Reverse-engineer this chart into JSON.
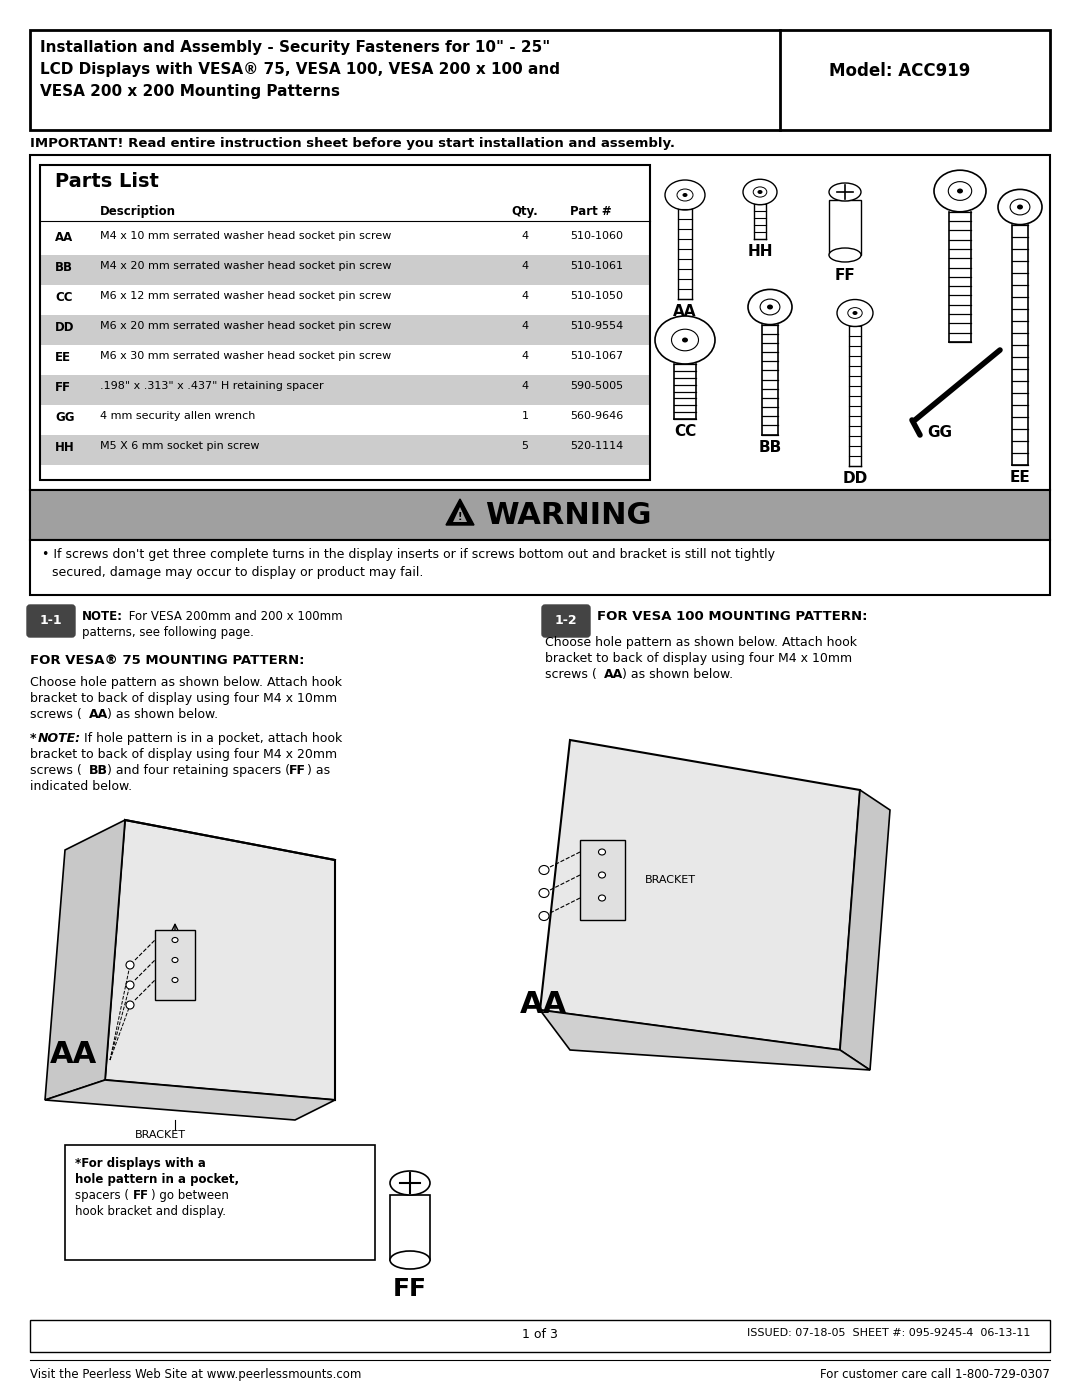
{
  "title_line1": "Installation and Assembly - Security Fasteners for 10\" - 25\"",
  "title_line2": "LCD Displays with VESA® 75, VESA 100, VESA 200 x 100 and",
  "title_line3": "VESA 200 x 200 Mounting Patterns",
  "model": "Model: ACC919",
  "important_note": "IMPORTANT! Read entire instruction sheet before you start installation and assembly.",
  "parts_list_title": "Parts List",
  "parts": [
    {
      "code": "AA",
      "desc": "M4 x 10 mm serrated washer head socket pin screw",
      "qty": "4",
      "part": "510-1060",
      "shaded": false
    },
    {
      "code": "BB",
      "desc": "M4 x 20 mm serrated washer head socket pin screw",
      "qty": "4",
      "part": "510-1061",
      "shaded": true
    },
    {
      "code": "CC",
      "desc": "M6 x 12 mm serrated washer head socket pin screw",
      "qty": "4",
      "part": "510-1050",
      "shaded": false
    },
    {
      "code": "DD",
      "desc": "M6 x 20 mm serrated washer head socket pin screw",
      "qty": "4",
      "part": "510-9554",
      "shaded": true
    },
    {
      "code": "EE",
      "desc": "M6 x 30 mm serrated washer head socket pin screw",
      "qty": "4",
      "part": "510-1067",
      "shaded": false
    },
    {
      "code": "FF",
      "desc": ".198\" x .313\" x .437\" H retaining spacer",
      "qty": "4",
      "part": "590-5005",
      "shaded": true
    },
    {
      "code": "GG",
      "desc": "4 mm security allen wrench",
      "qty": "1",
      "part": "560-9646",
      "shaded": false
    },
    {
      "code": "HH",
      "desc": "M5 X 6 mm socket pin screw",
      "qty": "5",
      "part": "520-1114",
      "shaded": true
    }
  ],
  "warning_text": "WARNING",
  "warning_body1": "If screws don't get three complete turns in the display inserts or if screws bottom out and bracket is still not tightly",
  "warning_body2": "secured, damage may occur to display or product may fail.",
  "section1_num": "1-1",
  "section1_note_bold": "NOTE:",
  "section1_note_rest": " For VESA 200mm and 200 x 100mm\npatterns, see following page.",
  "section1_title": "FOR VESA® 75 MOUNTING PATTERN:",
  "section1_body1": "Choose hole pattern as shown below. Attach hook\nbracket to back of display using four M4 x 10mm\nscrews (",
  "section1_body1_bold": "AA",
  "section1_body1_rest": ") as shown below.",
  "section1_note2_star": "*",
  "section1_note2_bold": "NOTE:",
  "section1_body2": " If hole pattern is in a pocket, attach hook\nbracket to back of display using four M4 x 20mm\nscrews (",
  "section1_body2_bold1": "BB",
  "section1_body2_mid": ") and four retaining spacers (",
  "section1_body2_bold2": "FF",
  "section1_body2_end": ") as\nindicated below.",
  "section2_num": "1-2",
  "section2_title": "FOR VESA 100 MOUNTING PATTERN:",
  "section2_body": "Choose hole pattern as shown below. Attach hook\nbracket to back of display using four M4 x 10mm\nscrews (",
  "section2_body_bold": "AA",
  "section2_body_end": ") as shown below.",
  "ff_box_text1": "*For displays with a",
  "ff_box_text2": "hole pattern in a pocket,",
  "ff_box_text3": "spacers (",
  "ff_box_text3_bold": "FF",
  "ff_box_text3_end": ") go between",
  "ff_box_text4": "hook bracket and display.",
  "ff_label": "FF",
  "footer_page": "1 of 3",
  "footer_issued": "ISSUED: 07-18-05  SHEET #: 095-9245-4  06-13-11",
  "footer_website": "Visit the Peerless Web Site at www.peerlessmounts.com",
  "footer_phone": "For customer care call 1-800-729-0307",
  "bg_color": "#ffffff",
  "shaded_row_color": "#cccccc",
  "warning_bg": "#a0a0a0",
  "section_num_bg": "#444444",
  "section_num_color": "#ffffff"
}
